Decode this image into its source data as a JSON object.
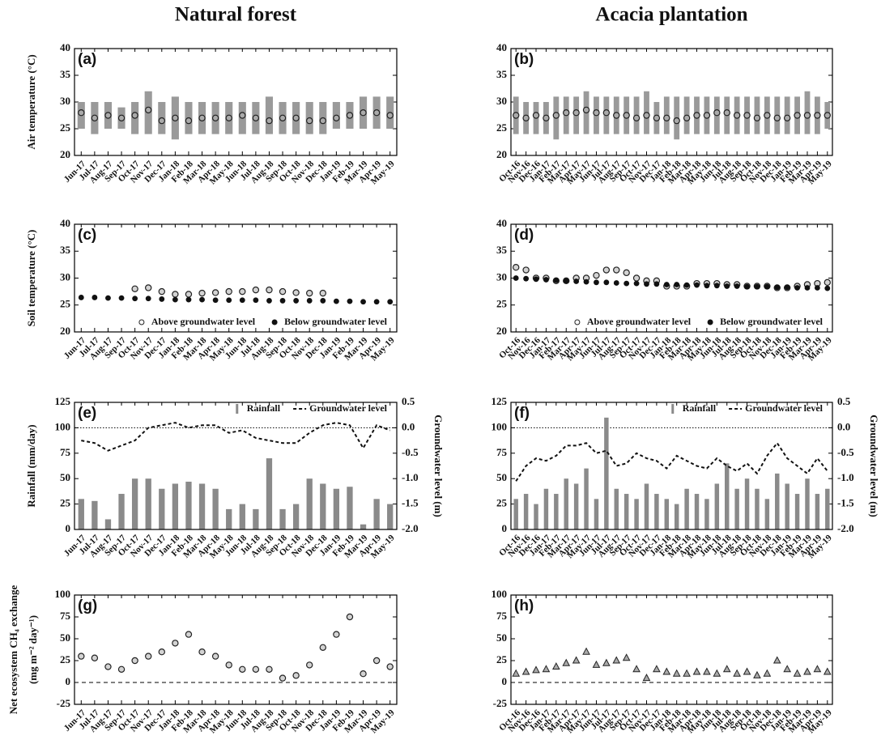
{
  "chart_data": [
    {
      "type": "scatter",
      "title": "Natural forest",
      "label": "(a)",
      "ylabel": "Air temperature (°C)",
      "categories": [
        "Jun-17",
        "Jul-17",
        "Aug-17",
        "Sep-17",
        "Oct-17",
        "Nov-17",
        "Dec-17",
        "Jan-18",
        "Feb-18",
        "Mar-18",
        "Apr-18",
        "May-18",
        "Jun-18",
        "Jul-18",
        "Aug-18",
        "Sep-18",
        "Oct-18",
        "Nov-18",
        "Dec-18",
        "Jan-19",
        "Feb-19",
        "Mar-19",
        "Apr-19",
        "May-19"
      ],
      "ylim": [
        20,
        40
      ],
      "yticks": [
        20,
        25,
        30,
        35,
        40
      ],
      "series": [
        {
          "color": "#9a9a9a",
          "marker": "range",
          "low": [
            25,
            24,
            25,
            25,
            24,
            24,
            24,
            23,
            24,
            24,
            24,
            24,
            24,
            24,
            24,
            24,
            24,
            24,
            24,
            25,
            25,
            25,
            25,
            25
          ],
          "high": [
            30,
            30,
            30,
            29,
            30,
            32,
            30,
            31,
            30,
            30,
            30,
            30,
            30,
            30,
            31,
            30,
            30,
            30,
            30,
            30,
            30,
            31,
            31,
            31
          ]
        },
        {
          "color": "#222222",
          "marker": "circle-open",
          "values": [
            28,
            27,
            27.5,
            27,
            27.5,
            28.5,
            26.5,
            27,
            26.5,
            27,
            27,
            27,
            27.5,
            27,
            26.5,
            27,
            27,
            26.5,
            26.5,
            27,
            27.5,
            28,
            28,
            27.5
          ]
        }
      ]
    },
    {
      "type": "scatter",
      "title": "Acacia plantation",
      "label": "(b)",
      "categories": [
        "Oct-16",
        "Nov-16",
        "Dec-16",
        "Jan-17",
        "Feb-17",
        "Mar-17",
        "Apr-17",
        "May-17",
        "Jun-17",
        "Jul-17",
        "Aug-17",
        "Sep-17",
        "Oct-17",
        "Nov-17",
        "Dec-17",
        "Jan-18",
        "Feb-18",
        "Mar-18",
        "Apr-18",
        "May-18",
        "Jun-18",
        "Jul-18",
        "Aug-18",
        "Sep-18",
        "Oct-18",
        "Nov-18",
        "Dec-18",
        "Jan-19",
        "Feb-19",
        "Mar-19",
        "Apr-19",
        "May-19"
      ],
      "ylim": [
        20,
        40
      ],
      "yticks": [
        20,
        25,
        30,
        35,
        40
      ],
      "series": [
        {
          "color": "#9a9a9a",
          "marker": "range",
          "low": [
            24,
            24,
            24,
            24,
            23,
            24,
            24,
            24,
            24,
            24,
            24,
            24,
            24,
            24,
            24,
            24,
            23,
            24,
            24,
            24,
            24,
            24,
            24,
            24,
            24,
            24,
            24,
            24,
            24,
            24,
            24,
            25
          ],
          "high": [
            31,
            30,
            30,
            30,
            31,
            31,
            31,
            32,
            31,
            31,
            31,
            31,
            31,
            32,
            30,
            31,
            31,
            31,
            31,
            31,
            31,
            31,
            31,
            31,
            31,
            31,
            31,
            31,
            31,
            32,
            31,
            30
          ]
        },
        {
          "color": "#222222",
          "marker": "circle-open",
          "values": [
            27.5,
            27,
            27.5,
            27,
            27.5,
            28,
            28,
            28.5,
            28,
            28,
            27.5,
            27.5,
            27,
            27.5,
            27,
            27,
            26.5,
            27,
            27.5,
            27.5,
            28,
            28,
            27.5,
            27.5,
            27,
            27.5,
            27,
            27,
            27.5,
            27.5,
            27.5,
            27.5
          ]
        }
      ]
    },
    {
      "type": "scatter",
      "label": "(c)",
      "ylabel": "Soil temperature (°C)",
      "legend": "lower right",
      "categories": [
        "Jun-17",
        "Jul-17",
        "Aug-17",
        "Sep-17",
        "Oct-17",
        "Nov-17",
        "Dec-17",
        "Jan-18",
        "Feb-18",
        "Mar-18",
        "Apr-18",
        "May-18",
        "Jun-18",
        "Jul-18",
        "Aug-18",
        "Sep-18",
        "Oct-18",
        "Nov-18",
        "Dec-18",
        "Jan-19",
        "Feb-19",
        "Mar-19",
        "Apr-19",
        "May-19"
      ],
      "ylim": [
        20,
        40
      ],
      "yticks": [
        20,
        25,
        30,
        35,
        40
      ],
      "series": [
        {
          "name": "Above groundwater level",
          "color": "#222222",
          "marker": "circle-open",
          "values": [
            null,
            null,
            null,
            null,
            28,
            28.2,
            27.5,
            27,
            27,
            27.2,
            27.3,
            27.5,
            27.5,
            27.8,
            27.8,
            27.5,
            27.3,
            27.2,
            27.2,
            null,
            null,
            null,
            null,
            null
          ]
        },
        {
          "name": "Below groundwater level",
          "color": "#111111",
          "marker": "circle-filled",
          "values": [
            26.4,
            26.4,
            26.3,
            26.3,
            26.2,
            26.2,
            26.1,
            26,
            26,
            26,
            25.9,
            25.9,
            25.9,
            25.9,
            25.8,
            25.8,
            25.8,
            25.8,
            25.8,
            25.7,
            25.7,
            25.6,
            25.6,
            25.6
          ]
        }
      ]
    },
    {
      "type": "scatter",
      "label": "(d)",
      "legend": "lower right",
      "categories": [
        "Oct-16",
        "Nov-16",
        "Dec-16",
        "Jan-17",
        "Feb-17",
        "Mar-17",
        "Apr-17",
        "May-17",
        "Jun-17",
        "Jul-17",
        "Aug-17",
        "Sep-17",
        "Oct-17",
        "Nov-17",
        "Dec-17",
        "Jan-18",
        "Feb-18",
        "Mar-18",
        "Apr-18",
        "May-18",
        "Jun-18",
        "Jul-18",
        "Aug-18",
        "Sep-18",
        "Oct-18",
        "Nov-18",
        "Dec-18",
        "Jan-19",
        "Feb-19",
        "Mar-19",
        "Apr-19",
        "May-19"
      ],
      "ylim": [
        20,
        40
      ],
      "yticks": [
        20,
        25,
        30,
        35,
        40
      ],
      "series": [
        {
          "name": "Above groundwater level",
          "color": "#222222",
          "marker": "circle-open",
          "values": [
            32,
            31.5,
            30,
            30,
            29.5,
            29.5,
            30,
            30,
            30.5,
            31.5,
            31.5,
            31,
            30,
            29.5,
            29.5,
            28.5,
            28.5,
            28.5,
            29,
            29,
            29,
            28.8,
            28.8,
            28.5,
            28.5,
            28.5,
            28.2,
            28.2,
            28.5,
            28.8,
            29,
            29.2
          ]
        },
        {
          "name": "Below groundwater level",
          "color": "#111111",
          "marker": "circle-filled",
          "values": [
            30,
            29.9,
            29.8,
            29.7,
            29.6,
            29.5,
            29.4,
            29.3,
            29.2,
            29.2,
            29.1,
            29,
            29,
            28.9,
            28.9,
            28.8,
            28.8,
            28.7,
            28.7,
            28.6,
            28.6,
            28.5,
            28.5,
            28.4,
            28.4,
            28.4,
            28.3,
            28.3,
            28.2,
            28.2,
            28.2,
            28.1
          ]
        }
      ]
    },
    {
      "type": "combo",
      "label": "(e)",
      "ylabel": "Rainfall (mm/day)",
      "y2label": "Groundwater level (m)",
      "legend": "upper right",
      "categories": [
        "Jun-17",
        "Jul-17",
        "Aug-17",
        "Sep-17",
        "Oct-17",
        "Nov-17",
        "Dec-17",
        "Jan-18",
        "Feb-18",
        "Mar-18",
        "Apr-18",
        "May-18",
        "Jun-18",
        "Jul-18",
        "Aug-18",
        "Sep-18",
        "Oct-18",
        "Nov-18",
        "Dec-18",
        "Jan-19",
        "Feb-19",
        "Mar-19",
        "Apr-19",
        "May-19"
      ],
      "ylim": [
        0,
        125
      ],
      "yticks": [
        0,
        25,
        50,
        75,
        100,
        125
      ],
      "y2lim": [
        -2,
        0.5
      ],
      "y2ticks": [
        {
          "value": -2,
          "label": "-2.0"
        },
        -1.5,
        {
          "value": -1,
          "label": "-1.0"
        },
        -0.5,
        {
          "value": 0,
          "label": "0.0"
        },
        0.5
      ],
      "reference_line": {
        "value": 0,
        "axis": "y2",
        "style": "dotted"
      },
      "series": [
        {
          "name": "Rainfall",
          "color": "#8a8a8a",
          "marker": "bar",
          "values": [
            30,
            28,
            10,
            35,
            50,
            50,
            40,
            45,
            47,
            45,
            40,
            20,
            25,
            20,
            70,
            20,
            25,
            50,
            45,
            40,
            42,
            5,
            30,
            25
          ]
        },
        {
          "name": "Groundwater level",
          "color": "#111111",
          "marker": "dashed-line",
          "axis": "y2",
          "values": [
            -0.25,
            -0.3,
            -0.45,
            -0.35,
            -0.25,
            0,
            0.05,
            0.1,
            0,
            0.05,
            0.05,
            -0.1,
            -0.05,
            -0.2,
            -0.25,
            -0.3,
            -0.3,
            -0.1,
            0.05,
            0.1,
            0.05,
            -0.4,
            0.05,
            -0.05
          ]
        }
      ]
    },
    {
      "type": "combo",
      "label": "(f)",
      "y2label": "Groundwater level (m)",
      "legend": "upper right",
      "categories": [
        "Oct-16",
        "Nov-16",
        "Dec-16",
        "Jan-17",
        "Feb-17",
        "Mar-17",
        "Apr-17",
        "May-17",
        "Jun-17",
        "Jul-17",
        "Aug-17",
        "Sep-17",
        "Oct-17",
        "Nov-17",
        "Dec-17",
        "Jan-18",
        "Feb-18",
        "Mar-18",
        "Apr-18",
        "May-18",
        "Jun-18",
        "Jul-18",
        "Aug-18",
        "Sep-18",
        "Oct-18",
        "Nov-18",
        "Dec-18",
        "Jan-19",
        "Feb-19",
        "Mar-19",
        "Apr-19",
        "May-19"
      ],
      "ylim": [
        0,
        125
      ],
      "yticks": [
        0,
        25,
        50,
        75,
        100,
        125
      ],
      "y2lim": [
        -2,
        0.5
      ],
      "y2ticks": [
        {
          "value": -2,
          "label": "-2.0"
        },
        -1.5,
        {
          "value": -1,
          "label": "-1.0"
        },
        -0.5,
        {
          "value": 0,
          "label": "0.0"
        },
        0.5
      ],
      "reference_line": {
        "value": 0,
        "axis": "y2",
        "style": "dotted"
      },
      "series": [
        {
          "name": "Rainfall",
          "color": "#8a8a8a",
          "marker": "bar",
          "values": [
            30,
            35,
            25,
            40,
            35,
            50,
            45,
            60,
            30,
            110,
            40,
            35,
            30,
            45,
            35,
            30,
            25,
            40,
            35,
            30,
            45,
            65,
            40,
            50,
            40,
            30,
            55,
            45,
            35,
            50,
            35,
            40
          ]
        },
        {
          "name": "Groundwater level",
          "color": "#111111",
          "marker": "dashed-line",
          "axis": "y2",
          "values": [
            -1.05,
            -0.75,
            -0.6,
            -0.65,
            -0.55,
            -0.35,
            -0.35,
            -0.3,
            -0.5,
            -0.45,
            -0.75,
            -0.7,
            -0.5,
            -0.6,
            -0.65,
            -0.8,
            -0.55,
            -0.65,
            -0.75,
            -0.8,
            -0.6,
            -0.75,
            -0.85,
            -0.7,
            -0.9,
            -0.55,
            -0.3,
            -0.6,
            -0.75,
            -0.9,
            -0.6,
            -0.85
          ]
        }
      ]
    },
    {
      "type": "scatter",
      "label": "(g)",
      "ylabel": [
        "Net ecosystem CH₄ exchange",
        "(mg m⁻² day⁻¹)"
      ],
      "categories": [
        "Jun-17",
        "Jul-17",
        "Aug-17",
        "Sep-17",
        "Oct-17",
        "Nov-17",
        "Dec-17",
        "Jan-18",
        "Feb-18",
        "Mar-18",
        "Apr-18",
        "May-18",
        "Jun-18",
        "Jul-18",
        "Aug-18",
        "Sep-18",
        "Oct-18",
        "Nov-18",
        "Dec-18",
        "Jan-19",
        "Feb-19",
        "Mar-19",
        "Apr-19",
        "May-19"
      ],
      "ylim": [
        -25,
        100
      ],
      "yticks": [
        -25,
        0,
        25,
        50,
        75,
        100
      ],
      "reference_line": {
        "value": 0,
        "style": "dashed"
      },
      "series": [
        {
          "color": "#222222",
          "marker": "circle-open",
          "values": [
            30,
            28,
            18,
            15,
            25,
            30,
            35,
            45,
            55,
            35,
            30,
            20,
            15,
            15,
            15,
            5,
            8,
            20,
            40,
            55,
            75,
            10,
            25,
            18
          ]
        }
      ]
    },
    {
      "type": "scatter",
      "label": "(h)",
      "categories": [
        "Oct-16",
        "Nov-16",
        "Dec-16",
        "Jan-17",
        "Feb-17",
        "Mar-17",
        "Apr-17",
        "May-17",
        "Jun-17",
        "Jul-17",
        "Aug-17",
        "Sep-17",
        "Oct-17",
        "Nov-17",
        "Dec-17",
        "Jan-18",
        "Feb-18",
        "Mar-18",
        "Apr-18",
        "May-18",
        "Jun-18",
        "Jul-18",
        "Aug-18",
        "Sep-18",
        "Oct-18",
        "Nov-18",
        "Dec-18",
        "Jan-19",
        "Feb-19",
        "Mar-19",
        "Apr-19",
        "May-19"
      ],
      "ylim": [
        -25,
        100
      ],
      "yticks": [
        -25,
        0,
        25,
        50,
        75,
        100
      ],
      "reference_line": {
        "value": 0,
        "style": "dashed"
      },
      "series": [
        {
          "color": "#222222",
          "marker": "triangle",
          "values": [
            10,
            12,
            14,
            15,
            18,
            22,
            25,
            35,
            20,
            22,
            25,
            28,
            15,
            5,
            15,
            12,
            10,
            10,
            12,
            12,
            10,
            15,
            10,
            12,
            8,
            10,
            25,
            15,
            10,
            12,
            15,
            12
          ]
        }
      ]
    }
  ]
}
